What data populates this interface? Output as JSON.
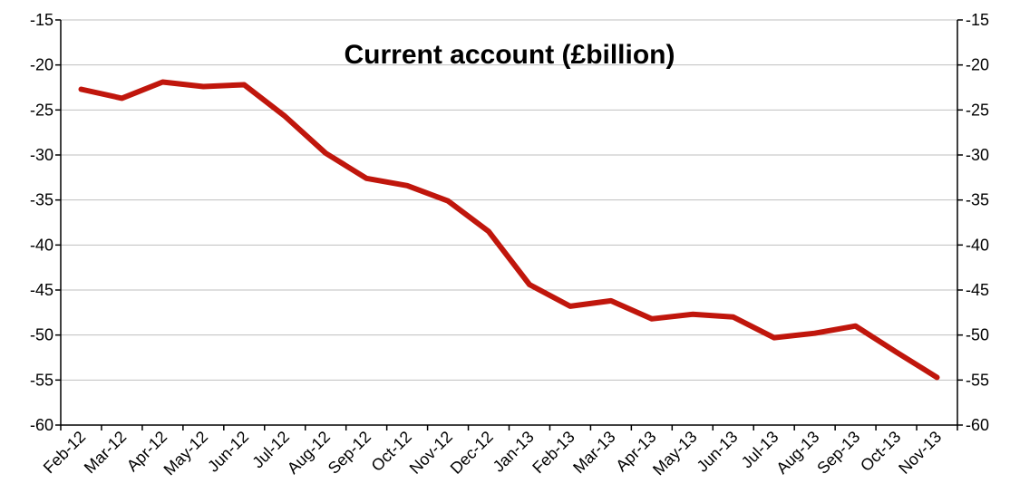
{
  "colors": {
    "line": "#c0160c",
    "axis": "#000000",
    "grid": "#bfbfbf",
    "background": "#ffffff"
  },
  "chart_data": {
    "type": "line",
    "title": "Current account (£billion)",
    "xlabel": "",
    "ylabel": "",
    "categories": [
      "Feb-12",
      "Mar-12",
      "Apr-12",
      "May-12",
      "Jun-12",
      "Jul-12",
      "Aug-12",
      "Sep-12",
      "Oct-12",
      "Nov-12",
      "Dec-12",
      "Jan-13",
      "Feb-13",
      "Mar-13",
      "Apr-13",
      "May-13",
      "Jun-13",
      "Jul-13",
      "Aug-13",
      "Sep-13",
      "Oct-13",
      "Nov-13"
    ],
    "series": [
      {
        "values": [
          -22.7,
          -23.7,
          -21.9,
          -22.4,
          -22.2,
          -25.7,
          -29.8,
          -32.6,
          -33.4,
          -35.1,
          -38.5,
          -44.4,
          -46.8,
          -46.2,
          -48.2,
          -47.7,
          -48.0,
          -50.3,
          -49.8,
          -49.0,
          -51.9,
          -54.7
        ]
      }
    ],
    "ylim": [
      -60,
      -15
    ],
    "yticks": [
      -15,
      -20,
      -25,
      -30,
      -35,
      -40,
      -45,
      -50,
      -55,
      -60
    ],
    "ytick_labels": [
      "-15",
      "-20",
      "-25",
      "-30",
      "-35",
      "-40",
      "-45",
      "-50",
      "-55",
      "-60"
    ],
    "grid": true,
    "secondary_y_axis": true,
    "legend": "none"
  }
}
